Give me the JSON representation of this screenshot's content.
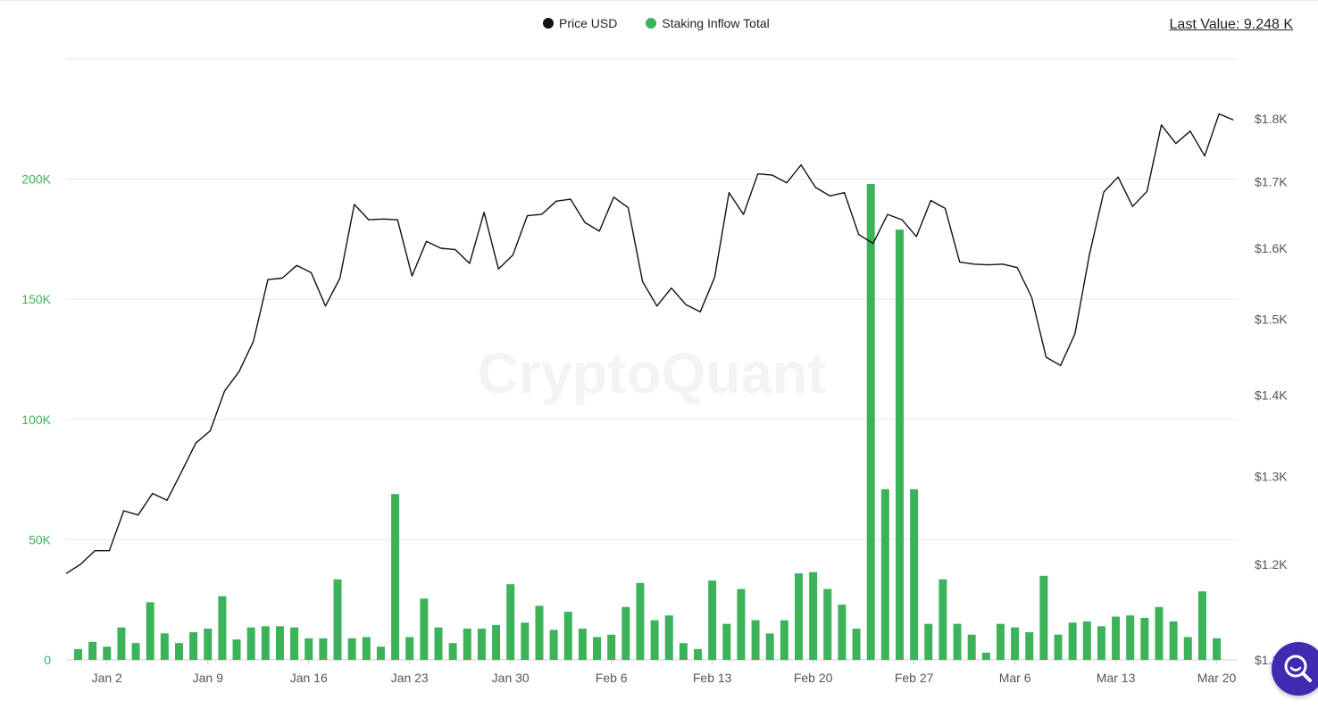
{
  "legend": {
    "price_label": "Price USD",
    "inflow_label": "Staking Inflow Total"
  },
  "last_value": "Last Value: 9.248 K",
  "watermark": "CryptoQuant",
  "colors": {
    "price": "#111111",
    "inflow": "#3cb35a",
    "left_axis_text": "#3cb35a",
    "right_axis_text": "#555555",
    "grid": "#e6e6e6",
    "accent": "#3f2bb0"
  },
  "icons": {
    "search_button": "search-icon"
  },
  "chart_data": {
    "type": "bar+line",
    "x_tick_labels": [
      "Jan 2",
      "Jan 9",
      "Jan 16",
      "Jan 23",
      "Jan 30",
      "Feb 6",
      "Feb 13",
      "Feb 20",
      "Feb 27",
      "Mar 6",
      "Mar 13",
      "Mar 20"
    ],
    "left_axis": {
      "ticks": [
        "0",
        "50K",
        "100K",
        "150K",
        "200K"
      ],
      "ylim": [
        0,
        250000
      ]
    },
    "right_axis": {
      "ticks": [
        "$1.1K",
        "$1.2K",
        "$1.3K",
        "$1.4K",
        "$1.5K",
        "$1.6K",
        "$1.7K",
        "$1.8K"
      ],
      "tick_values": [
        1100,
        1200,
        1300,
        1400,
        1500,
        1600,
        1700,
        1800
      ],
      "scale": "log"
    },
    "x_start": "Dec 31",
    "series": [
      {
        "name": "Staking Inflow Total",
        "type": "bar",
        "axis": "left",
        "values": [
          4500,
          7500,
          5500,
          13500,
          7000,
          24000,
          11000,
          7000,
          11500,
          13000,
          26500,
          8500,
          13500,
          14000,
          14000,
          13500,
          9000,
          9000,
          33500,
          9000,
          9500,
          5500,
          69000,
          9500,
          25500,
          13500,
          7000,
          13000,
          13000,
          14500,
          31500,
          15500,
          22500,
          12500,
          20000,
          13000,
          9500,
          10500,
          22000,
          32000,
          16500,
          18500,
          7000,
          4500,
          33000,
          15000,
          29500,
          16500,
          11000,
          16500,
          36000,
          36500,
          29500,
          23000,
          13000,
          198000,
          71000,
          179000,
          71000,
          15000,
          33500,
          15000,
          10500,
          3000,
          15000,
          13500,
          11500,
          35000,
          10500,
          15500,
          16000,
          14000,
          18000,
          18500,
          17500,
          22000,
          16000,
          9500,
          28500,
          9000
        ]
      },
      {
        "name": "Price USD",
        "type": "line",
        "axis": "right",
        "values": [
          1190,
          1200,
          1215,
          1215,
          1260,
          1255,
          1280,
          1272,
          1305,
          1340,
          1355,
          1405,
          1430,
          1470,
          1555,
          1557,
          1575,
          1565,
          1518,
          1557,
          1665,
          1642,
          1643,
          1642,
          1560,
          1610,
          1600,
          1598,
          1578,
          1653,
          1570,
          1590,
          1648,
          1650,
          1670,
          1673,
          1638,
          1625,
          1676,
          1660,
          1552,
          1518,
          1543,
          1520,
          1510,
          1558,
          1683,
          1650,
          1712,
          1710,
          1698,
          1726,
          1691,
          1678,
          1683,
          1620,
          1607,
          1650,
          1642,
          1617,
          1671,
          1659,
          1580,
          1577,
          1576,
          1577,
          1572,
          1530,
          1449,
          1438,
          1480,
          1590,
          1684,
          1707,
          1662,
          1685,
          1790,
          1760,
          1780,
          1740,
          1808,
          1798
        ]
      }
    ]
  }
}
